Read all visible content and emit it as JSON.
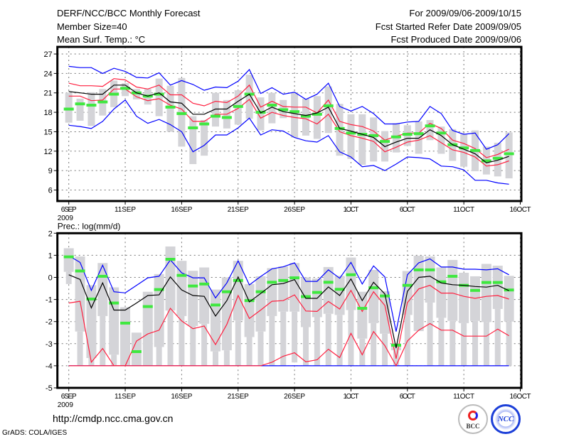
{
  "header": {
    "title": "DERF/NCC/BCC Monthly Forecast",
    "member_size": "Member Size=40",
    "variable": "Mean Surf. Temp.: °C",
    "period": "For 2009/09/06-2009/10/15",
    "start_date": "Fcst Started Refer Date 2009/09/05",
    "produced_date": "Fcst Produced Date 2009/09/06"
  },
  "footer": {
    "url": "http://cmdp.ncc.cma.gov.cn",
    "credit": "GrADS: COLA/IGES",
    "logo_bcc": "BCC",
    "logo_ncc": "NCC"
  },
  "colors": {
    "mean": "#000000",
    "spread": "#ff1f3f",
    "extreme": "#0000ff",
    "median": "#3fe83f",
    "box": "#d4d4d8"
  },
  "chart_data": [
    {
      "type": "line",
      "title": "Mean Surf. Temp.: °C",
      "xlabel": "",
      "ylabel": "",
      "x_ticks": [
        "6SEP",
        "11SEP",
        "16SEP",
        "21SEP",
        "26SEP",
        "1OCT",
        "6OCT",
        "11OCT",
        "16OCT"
      ],
      "x_year": "2009",
      "x_tick_step_days": 5,
      "num_days": 40,
      "y_ticks": [
        6,
        9,
        12,
        15,
        18,
        21,
        24,
        27
      ],
      "ylim": [
        4.3,
        28.1
      ],
      "grid": true,
      "series": {
        "mean": [
          21.2,
          21.0,
          20.8,
          20.8,
          22.2,
          22.2,
          21.0,
          20.5,
          21.0,
          19.6,
          19.4,
          17.7,
          17.7,
          18.5,
          18.5,
          19.7,
          20.8,
          17.9,
          18.8,
          18.1,
          17.8,
          17.5,
          17.9,
          18.8,
          15.5,
          15.1,
          14.6,
          14.1,
          12.7,
          13.4,
          14.0,
          14.0,
          15.3,
          14.4,
          13.0,
          12.3,
          11.6,
          10.2,
          10.6,
          11.2
        ],
        "spread_upper": [
          22.5,
          22.1,
          22.1,
          22.0,
          23.2,
          23.0,
          21.9,
          21.6,
          22.2,
          20.7,
          20.7,
          19.4,
          19.0,
          19.7,
          19.5,
          20.5,
          22.2,
          18.8,
          19.7,
          18.9,
          18.8,
          18.8,
          17.9,
          19.9,
          16.6,
          16.1,
          15.8,
          15.1,
          13.7,
          14.3,
          14.8,
          14.8,
          16.3,
          15.5,
          13.7,
          13.2,
          12.4,
          11.0,
          11.5,
          12.3
        ],
        "spread_lower": [
          20.5,
          20.5,
          19.8,
          19.9,
          21.6,
          21.6,
          20.4,
          19.8,
          20.1,
          19.1,
          18.5,
          16.6,
          16.6,
          17.7,
          17.7,
          18.6,
          20.0,
          17.1,
          18.0,
          17.5,
          17.2,
          17.0,
          16.2,
          17.7,
          15.0,
          14.4,
          14.0,
          13.5,
          11.9,
          12.6,
          13.4,
          13.7,
          14.4,
          13.3,
          12.2,
          11.8,
          11.1,
          9.7,
          9.9,
          10.5
        ],
        "max": [
          25.1,
          24.9,
          24.9,
          24.0,
          24.8,
          24.3,
          23.4,
          23.3,
          24.1,
          22.2,
          22.9,
          22.3,
          21.4,
          21.9,
          21.8,
          22.8,
          24.6,
          20.9,
          21.8,
          20.8,
          21.1,
          20.0,
          20.8,
          22.5,
          18.9,
          18.2,
          18.9,
          17.8,
          16.2,
          16.2,
          16.5,
          16.6,
          18.9,
          17.8,
          15.2,
          14.6,
          14.8,
          12.3,
          13.0,
          14.7
        ],
        "min": [
          16.0,
          15.8,
          15.5,
          16.6,
          18.5,
          19.9,
          17.4,
          16.3,
          16.9,
          16.1,
          15.0,
          11.9,
          12.9,
          14.5,
          14.5,
          15.6,
          17.1,
          14.5,
          15.3,
          15.1,
          14.1,
          13.6,
          13.4,
          14.4,
          11.9,
          11.1,
          9.6,
          9.8,
          9.0,
          10.0,
          11.1,
          11.0,
          10.8,
          9.7,
          9.6,
          9.1,
          7.5,
          7.5,
          7.1,
          6.9
        ],
        "median": [
          18.5,
          19.3,
          19.1,
          19.6,
          20.8,
          21.7,
          21.0,
          20.5,
          20.8,
          18.8,
          17.8,
          15.6,
          16.2,
          17.4,
          17.2,
          18.9,
          20.8,
          18.0,
          19.1,
          18.4,
          18.1,
          17.4,
          17.7,
          19.0,
          15.5,
          14.8,
          14.6,
          14.4,
          13.5,
          14.2,
          14.6,
          14.7,
          15.9,
          14.8,
          13.0,
          12.5,
          12.1,
          10.5,
          10.9,
          11.6
        ],
        "box_top": [
          21.0,
          20.1,
          21.1,
          21.6,
          22.9,
          22.5,
          21.6,
          21.6,
          23.2,
          22.1,
          23.3,
          17.4,
          16.8,
          21.0,
          19.9,
          21.4,
          23.8,
          20.3,
          21.0,
          19.9,
          21.0,
          20.1,
          20.5,
          22.0,
          19.3,
          17.7,
          17.7,
          17.2,
          15.1,
          16.3,
          16.0,
          16.6,
          16.8,
          15.8,
          15.4,
          14.6,
          15.2,
          12.7,
          13.3,
          14.9
        ],
        "box_bottom": [
          16.4,
          16.7,
          15.9,
          17.5,
          18.8,
          20.5,
          20.0,
          19.2,
          17.4,
          15.0,
          12.7,
          10.0,
          11.3,
          15.8,
          15.5,
          16.1,
          17.0,
          15.2,
          16.3,
          17.1,
          14.1,
          14.4,
          13.9,
          14.8,
          11.3,
          10.8,
          9.9,
          10.4,
          10.4,
          11.8,
          12.8,
          11.6,
          13.7,
          11.6,
          10.5,
          9.6,
          8.9,
          8.4,
          8.1,
          7.8
        ]
      }
    },
    {
      "type": "line",
      "title": "Prec.: log(mm/d)",
      "xlabel": "",
      "ylabel": "",
      "x_ticks": [
        "6SEP",
        "11SEP",
        "16SEP",
        "21SEP",
        "26SEP",
        "1OCT",
        "6OCT",
        "11OCT",
        "16OCT"
      ],
      "x_year": "2009",
      "x_tick_step_days": 5,
      "num_days": 40,
      "y_ticks": [
        -5,
        -4,
        -3,
        -2,
        -1,
        0,
        1,
        2
      ],
      "ylim": [
        -5,
        2
      ],
      "grid": true,
      "series": {
        "mean": [
          0.12,
          -0.09,
          -1.38,
          -0.25,
          -1.48,
          -1.48,
          -1.16,
          -0.82,
          -0.79,
          0.02,
          -0.57,
          -0.82,
          -0.86,
          -1.75,
          -1.05,
          0.02,
          -1.11,
          -0.73,
          -0.33,
          -0.28,
          -0.1,
          -0.95,
          -0.95,
          -0.43,
          -0.82,
          -0.07,
          -1.05,
          -0.22,
          -0.75,
          -3.2,
          -0.63,
          0.0,
          0.05,
          -0.25,
          -0.33,
          -0.36,
          -0.41,
          -0.44,
          -0.36,
          -0.6
        ],
        "spread_upper": [
          -1.16,
          -1.08,
          -3.84,
          -3.22,
          -4.0,
          -4.0,
          -2.88,
          -2.56,
          -2.39,
          -1.4,
          -1.97,
          -2.32,
          -2.2,
          -3.04,
          -2.13,
          -0.82,
          -1.86,
          -1.48,
          -1.08,
          -1.05,
          -0.79,
          -1.52,
          -1.54,
          -1.09,
          -1.43,
          -0.59,
          -1.54,
          -0.65,
          -1.27,
          -3.68,
          -1.14,
          -0.52,
          -0.36,
          -0.71,
          -0.71,
          -0.86,
          -0.95,
          -0.86,
          -0.82,
          -0.98
        ],
        "spread_lower": [
          -4,
          -4,
          -4,
          -4,
          -4,
          -4,
          -4,
          -4,
          -4,
          -4,
          -4,
          -4,
          -4,
          -4,
          -4,
          -4,
          -4,
          -4,
          -3.84,
          -3.57,
          -3.41,
          -3.82,
          -3.73,
          -3.25,
          -3.63,
          -2.53,
          -3.5,
          -2.45,
          -3.09,
          -4.0,
          -2.88,
          -2.39,
          -2.09,
          -2.39,
          -2.39,
          -2.66,
          -2.66,
          -2.66,
          -2.34,
          -2.64
        ],
        "max": [
          0.98,
          0.68,
          -0.59,
          0.55,
          -0.65,
          -0.7,
          -0.36,
          -0.02,
          0.05,
          0.79,
          0.21,
          -0.02,
          -0.02,
          -0.93,
          -0.25,
          0.75,
          -0.34,
          0.04,
          0.39,
          0.48,
          0.66,
          -0.18,
          -0.18,
          0.34,
          -0.04,
          0.68,
          -0.3,
          0.52,
          0.02,
          -2.45,
          0.12,
          0.66,
          0.84,
          0.47,
          0.47,
          0.37,
          0.37,
          0.34,
          0.39,
          0.12
        ],
        "min": [
          -4,
          -4,
          -4,
          -4,
          -4,
          -4,
          -4,
          -4,
          -4,
          -4,
          -4,
          -4,
          -4,
          -4,
          -4,
          -4,
          -4,
          -4,
          -4,
          -4,
          -4,
          -4,
          -4,
          -4,
          -4,
          -4,
          -4,
          -4,
          -4,
          -4,
          -4,
          -4,
          -4,
          -4,
          -4,
          -4,
          -4,
          -4,
          -4,
          -4
        ],
        "median": [
          0.93,
          0.29,
          -0.98,
          0.05,
          -1.16,
          -2.07,
          -3.36,
          -1.32,
          -0.55,
          0.82,
          0.09,
          -0.39,
          -0.3,
          -1.25,
          -0.65,
          -0.14,
          -1.05,
          -0.65,
          -0.22,
          -0.14,
          -0.02,
          -0.87,
          -0.68,
          -0.22,
          -0.54,
          0.12,
          -1.4,
          -0.47,
          -0.84,
          -3.07,
          -0.36,
          0.34,
          0.34,
          -0.2,
          0.05,
          -0.36,
          -0.59,
          -0.23,
          -0.23,
          -0.57
        ],
        "box_top": [
          1.32,
          0.95,
          -0.35,
          0.65,
          -0.45,
          -1.35,
          -2.5,
          -0.65,
          0.15,
          1.4,
          0.75,
          0.3,
          0.45,
          -0.55,
          0.0,
          0.75,
          -0.3,
          0.05,
          0.42,
          0.5,
          0.65,
          0.0,
          -0.05,
          0.47,
          0.07,
          0.9,
          -0.65,
          0.34,
          -0.63,
          -2.98,
          0.29,
          0.98,
          0.95,
          0.45,
          0.79,
          0.21,
          0.05,
          0.61,
          0.53,
          0.07
        ],
        "box_bottom": [
          0.25,
          -2.45,
          -3.65,
          -1.75,
          -3.5,
          -4,
          -4,
          -4,
          -3.15,
          -1.5,
          -1.75,
          -2.2,
          -2.1,
          -3.35,
          -3.3,
          -1.95,
          -2.7,
          -2.45,
          -1.75,
          -1.55,
          -1.55,
          -2.25,
          -1.8,
          -1.65,
          -1.7,
          -1.48,
          -2.77,
          -2.07,
          -2.55,
          -3.3,
          -1.7,
          -2.43,
          -1.14,
          -1.83,
          -1.97,
          -2.07,
          -1.97,
          -2.02,
          -1.43,
          -2.0
        ],
        "whisker_bottom": [
          -0.3,
          -4,
          -4,
          -4,
          -4,
          -4,
          -4,
          -4,
          -4,
          -4,
          -4,
          -4,
          -4,
          -4,
          -4,
          -4,
          -4,
          -4,
          -4,
          -4,
          -3.85,
          -4,
          -4,
          -4,
          -4,
          -4,
          -4,
          -4,
          -4,
          -4,
          -4,
          -2.43,
          -4,
          -4,
          -4,
          -4,
          -4,
          -4,
          -4,
          -4
        ]
      }
    }
  ]
}
